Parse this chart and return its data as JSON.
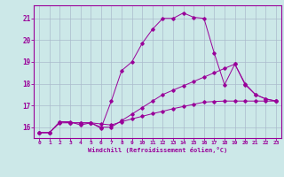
{
  "xlabel": "Windchill (Refroidissement éolien,°C)",
  "bg_color": "#cce8e8",
  "line_color": "#990099",
  "grid_color": "#aabbcc",
  "xlim": [
    -0.5,
    23.5
  ],
  "ylim": [
    15.5,
    21.6
  ],
  "yticks": [
    16,
    17,
    18,
    19,
    20,
    21
  ],
  "xticks": [
    0,
    1,
    2,
    3,
    4,
    5,
    6,
    7,
    8,
    9,
    10,
    11,
    12,
    13,
    14,
    15,
    16,
    17,
    18,
    19,
    20,
    21,
    22,
    23
  ],
  "series": [
    {
      "x": [
        0,
        1,
        2,
        3,
        4,
        5,
        6,
        7,
        8,
        9,
        10,
        11,
        12,
        13,
        14,
        15,
        16,
        17,
        18,
        19,
        20,
        21,
        22,
        23
      ],
      "y": [
        15.75,
        15.75,
        16.25,
        16.25,
        16.1,
        16.2,
        15.95,
        17.2,
        18.6,
        19.0,
        19.85,
        20.5,
        21.0,
        21.0,
        21.25,
        21.05,
        21.0,
        19.4,
        17.95,
        18.9,
        17.95,
        17.5,
        17.3,
        17.2
      ]
    },
    {
      "x": [
        0,
        1,
        2,
        3,
        4,
        5,
        6,
        7,
        8,
        9,
        10,
        11,
        12,
        13,
        14,
        15,
        16,
        17,
        18,
        19,
        20,
        21,
        22,
        23
      ],
      "y": [
        15.75,
        15.75,
        16.25,
        16.2,
        16.2,
        16.2,
        16.15,
        16.1,
        16.25,
        16.38,
        16.5,
        16.62,
        16.73,
        16.85,
        16.95,
        17.05,
        17.15,
        17.18,
        17.2,
        17.2,
        17.2,
        17.2,
        17.2,
        17.2
      ]
    },
    {
      "x": [
        0,
        1,
        2,
        3,
        4,
        5,
        6,
        7,
        8,
        9,
        10,
        11,
        12,
        13,
        14,
        15,
        16,
        17,
        18,
        19,
        20,
        21,
        22,
        23
      ],
      "y": [
        15.75,
        15.75,
        16.2,
        16.2,
        16.2,
        16.2,
        16.0,
        16.0,
        16.3,
        16.6,
        16.9,
        17.2,
        17.5,
        17.7,
        17.9,
        18.1,
        18.3,
        18.5,
        18.7,
        18.9,
        18.0,
        17.5,
        17.3,
        17.2
      ]
    }
  ]
}
